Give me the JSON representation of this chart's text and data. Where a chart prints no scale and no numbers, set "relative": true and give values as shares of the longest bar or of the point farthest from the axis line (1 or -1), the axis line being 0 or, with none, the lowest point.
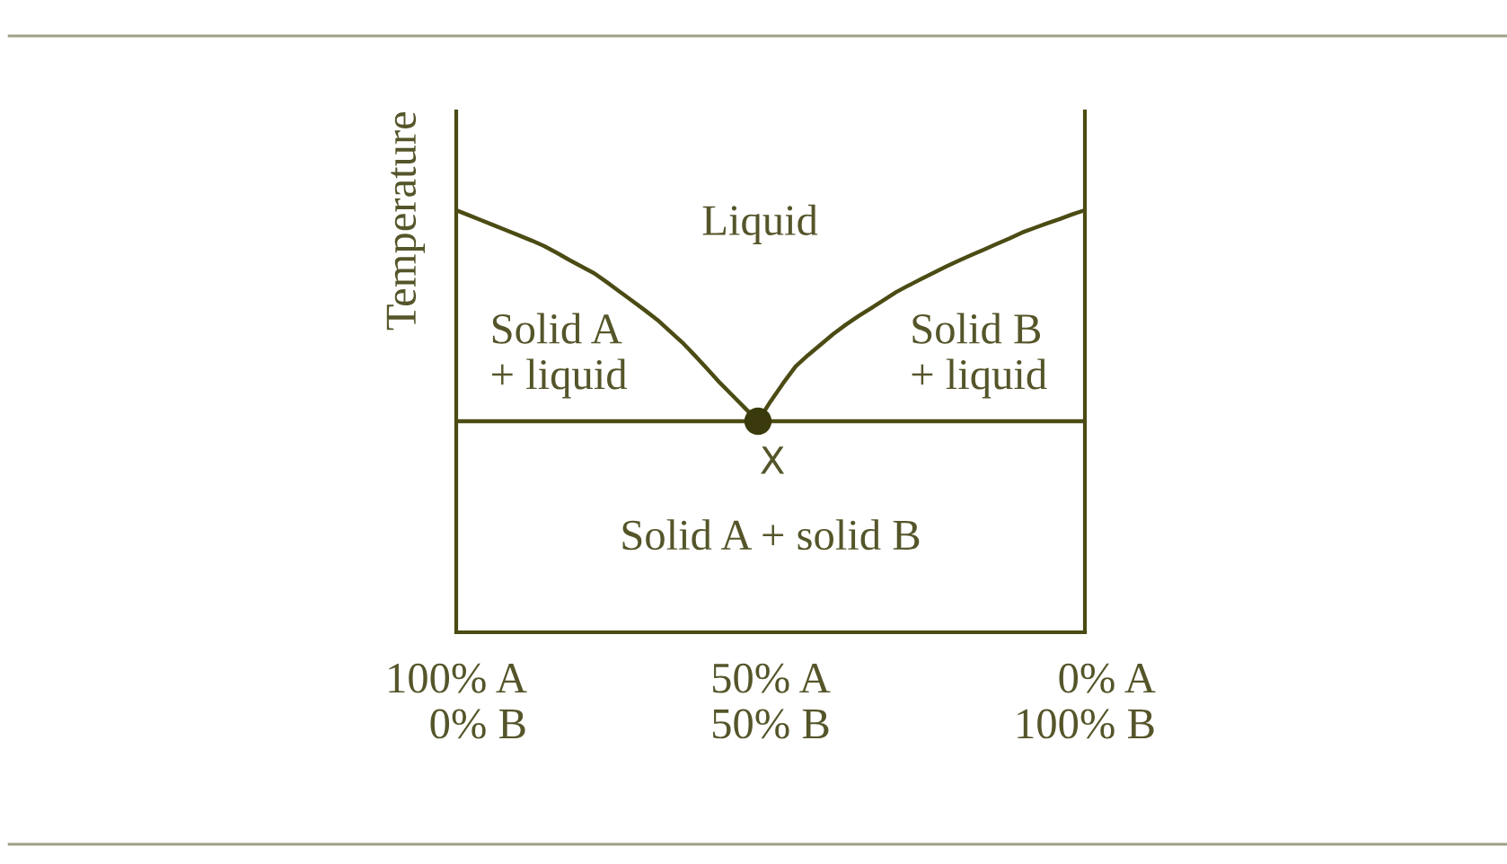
{
  "chart_data": {
    "type": "line",
    "relative": true,
    "ylabel": "Temperature",
    "categories": [
      "100% A\n0% B",
      null,
      null,
      null,
      null,
      null,
      null,
      null,
      null,
      null,
      null,
      null,
      null,
      null,
      null,
      null,
      null,
      null,
      null,
      null,
      null,
      null,
      null,
      null,
      null,
      "50% A\n50% B",
      null,
      null,
      null,
      null,
      null,
      null,
      null,
      null,
      null,
      null,
      null,
      null,
      null,
      null,
      null,
      null,
      null,
      null,
      null,
      null,
      null,
      null,
      null,
      null,
      "0% A\n100% B"
    ],
    "series": [
      {
        "color": "#4b4b14",
        "values": [
          1.0,
          0.988,
          0.976,
          0.964,
          0.952,
          0.94,
          0.928,
          0.915,
          0.899,
          0.882,
          0.866,
          0.85,
          0.829,
          0.807,
          0.785,
          0.763,
          0.74,
          0.713,
          0.686,
          0.655,
          0.623,
          0.59,
          0.56,
          0.53,
          0.5,
          null,
          null,
          null,
          null,
          null,
          null,
          null,
          null,
          null,
          null,
          null,
          null,
          null,
          null,
          null,
          null,
          null,
          null,
          null,
          null,
          null,
          null,
          null,
          null,
          null,
          null
        ]
      },
      {
        "color": "#4b4b14",
        "values": [
          null,
          null,
          null,
          null,
          null,
          null,
          null,
          null,
          null,
          null,
          null,
          null,
          null,
          null,
          null,
          null,
          null,
          null,
          null,
          null,
          null,
          null,
          null,
          null,
          0.5,
          0.547,
          0.59,
          0.63,
          0.657,
          0.682,
          0.707,
          0.729,
          0.749,
          0.768,
          0.787,
          0.806,
          0.822,
          0.837,
          0.852,
          0.867,
          0.881,
          0.894,
          0.907,
          0.92,
          0.933,
          0.947,
          0.958,
          0.969,
          0.979,
          0.99,
          1.0
        ]
      },
      {
        "color": "#4b4b14",
        "values": [
          0.5,
          0.5,
          0.5,
          0.5,
          0.5,
          0.5,
          0.5,
          0.5,
          0.5,
          0.5,
          0.5,
          0.5,
          0.5,
          0.5,
          0.5,
          0.5,
          0.5,
          0.5,
          0.5,
          0.5,
          0.5,
          0.5,
          0.5,
          0.5,
          0.5,
          0.5,
          0.5,
          0.5,
          0.5,
          0.5,
          0.5,
          0.5,
          0.5,
          0.5,
          0.5,
          0.5,
          0.5,
          0.5,
          0.5,
          0.5,
          0.5,
          0.5,
          0.5,
          0.5,
          0.5,
          0.5,
          0.5,
          0.5,
          0.5,
          0.5,
          0.5
        ]
      },
      {
        "type": "scatter",
        "marker": "circle",
        "color": "#3a3a0c",
        "values": [
          null,
          null,
          null,
          null,
          null,
          null,
          null,
          null,
          null,
          null,
          null,
          null,
          null,
          null,
          null,
          null,
          null,
          null,
          null,
          null,
          null,
          null,
          null,
          null,
          0.5,
          null,
          null,
          null,
          null,
          null,
          null,
          null,
          null,
          null,
          null,
          null,
          null,
          null,
          null,
          null,
          null,
          null,
          null,
          null,
          null,
          null,
          null,
          null,
          null,
          null,
          null
        ]
      }
    ],
    "annotations": [
      "Liquid",
      "Solid A\n+ liquid",
      "Solid B\n+ liquid",
      "X",
      "Solid A + solid B"
    ]
  }
}
